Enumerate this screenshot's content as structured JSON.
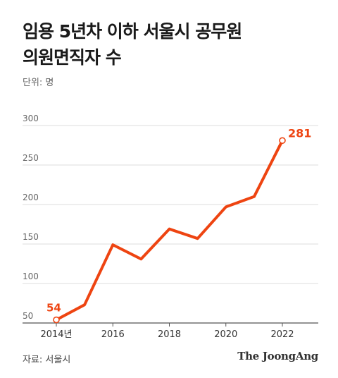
{
  "title_line1": "임용 5년차 이하 서울시 공무원",
  "title_line2": "의원면직자 수",
  "unit_label": "단위: 명",
  "source": "자료: 서울시",
  "brand": "The JoongAng",
  "colors": {
    "line": "#ee4411",
    "grid": "#dddddd",
    "axis": "#555555"
  },
  "chart_data": {
    "type": "line",
    "title": "임용 5년차 이하 서울시 공무원 의원면직자 수",
    "ylabel": "단위: 명",
    "xlabel": "",
    "x": [
      2014,
      2015,
      2016,
      2017,
      2018,
      2019,
      2020,
      2021,
      2022
    ],
    "values": [
      54,
      73,
      149,
      131,
      169,
      157,
      197,
      210,
      281
    ],
    "ylim": [
      50,
      300
    ],
    "yticks": [
      50,
      100,
      150,
      200,
      250,
      300
    ],
    "xtick_labels": [
      {
        "x": 2014,
        "label": "2014년"
      },
      {
        "x": 2016,
        "label": "2016"
      },
      {
        "x": 2018,
        "label": "2018"
      },
      {
        "x": 2020,
        "label": "2020"
      },
      {
        "x": 2022,
        "label": "2022"
      }
    ],
    "annotations": [
      {
        "x": 2014,
        "text": "54"
      },
      {
        "x": 2022,
        "text": "281"
      }
    ],
    "grid": true
  }
}
